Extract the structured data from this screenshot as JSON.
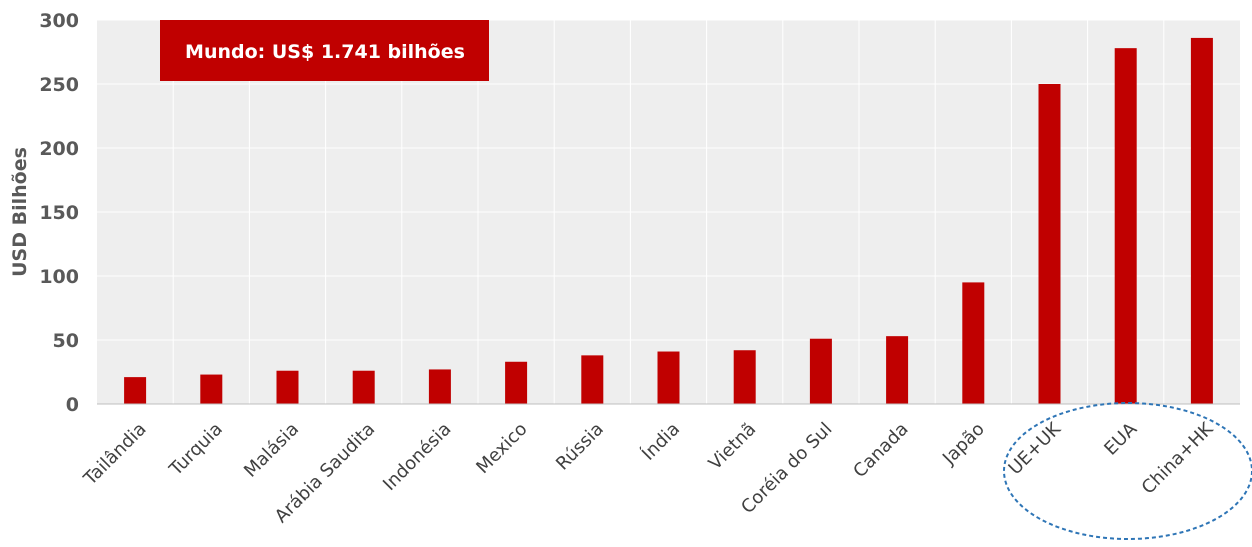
{
  "chart_data": {
    "type": "bar",
    "title": "",
    "ylabel": "USD Bilhões",
    "xlabel": "",
    "ylim": [
      0,
      300
    ],
    "yticks": [
      0,
      50,
      100,
      150,
      200,
      250,
      300
    ],
    "grid": true,
    "categories": [
      "Tailândia",
      "Turquia",
      "Malásia",
      "Arábia Saudita",
      "Indonésia",
      "Mexico",
      "Rússia",
      "Índia",
      "Vietnã",
      "Coréia do Sul",
      "Canada",
      "Japão",
      "UE+UK",
      "EUA",
      "China+HK"
    ],
    "values": [
      21,
      23,
      26,
      26,
      27,
      33,
      38,
      41,
      42,
      51,
      53,
      95,
      250,
      278,
      286
    ],
    "annotation": "Mundo: US$ 1.741 bilhões",
    "highlighted_categories": [
      "UE+UK",
      "EUA",
      "China+HK"
    ],
    "colors": {
      "bar": "#c00000",
      "annotation_bg": "#c00000",
      "annotation_text": "#ffffff",
      "highlight_ellipse": "#2e75b6",
      "plot_bg": "#eeeeee",
      "grid": "#ffffff"
    }
  }
}
